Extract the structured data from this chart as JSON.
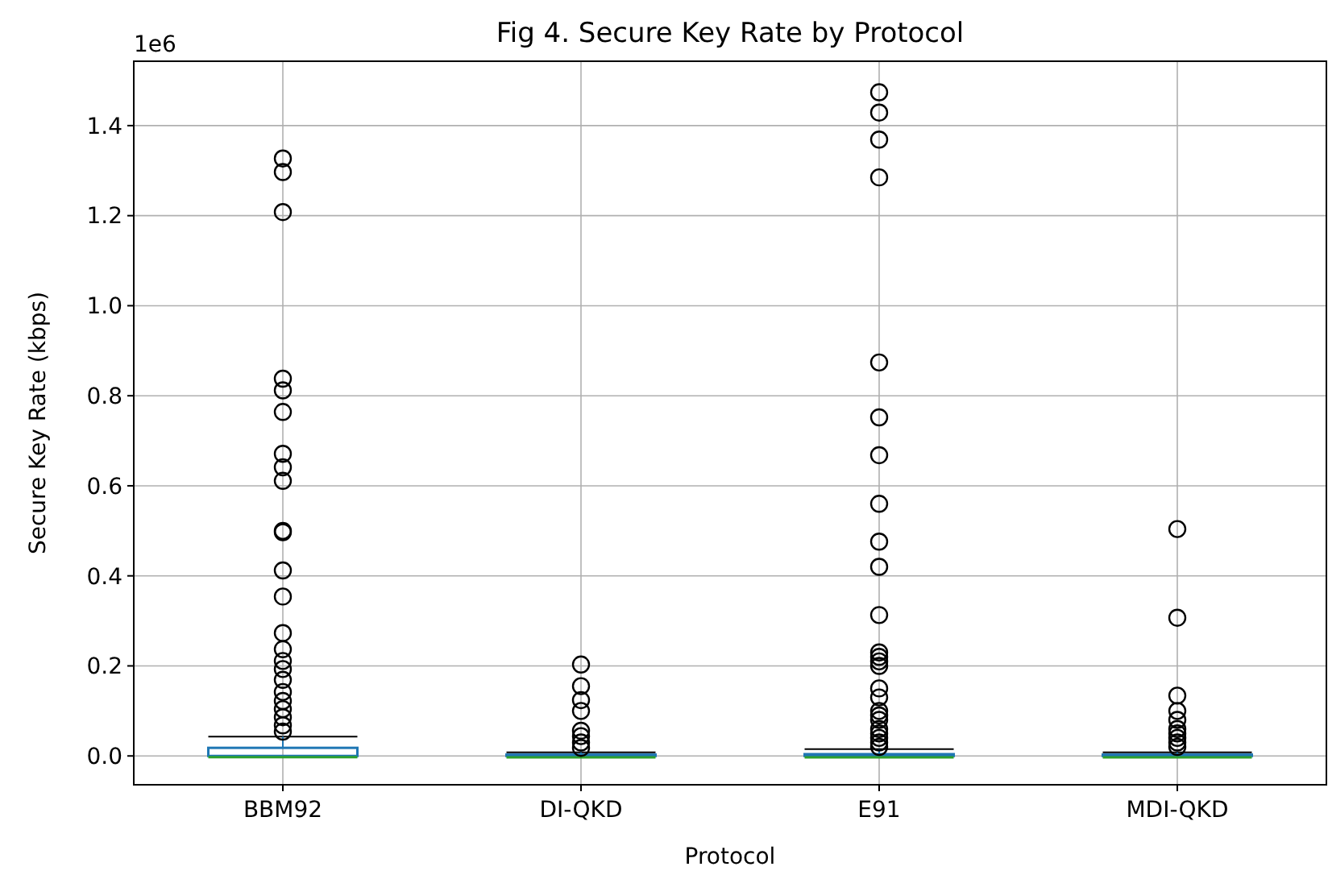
{
  "chart_data": {
    "type": "box",
    "title": "Fig 4. Secure Key Rate by Protocol",
    "xlabel": "Protocol",
    "ylabel": "Secure Key Rate (kbps)",
    "annotations": [
      "1e6"
    ],
    "categories": [
      "BBM92",
      "DI-QKD",
      "E91",
      "MDI-QKD"
    ],
    "ylim": [
      -0.064,
      1.543
    ],
    "yticks": [
      {
        "value": 0,
        "label": "0.0"
      },
      {
        "value": 0.2,
        "label": "0.2"
      },
      {
        "value": 0.4,
        "label": "0.4"
      },
      {
        "value": 0.6,
        "label": "0.6"
      },
      {
        "value": 0.8,
        "label": "0.8"
      },
      {
        "value": 1.0,
        "label": "1.0"
      },
      {
        "value": 1.2,
        "label": "1.2"
      },
      {
        "value": 1.4,
        "label": "1.4"
      }
    ],
    "grid": true,
    "marker": "circle",
    "series": [
      {
        "color": "#1f77b4",
        "boxes": [
          {
            "low": 0,
            "q1": 0,
            "median": 0.001,
            "q3": 0.018,
            "high": 0.043,
            "outliers": [
              1.327,
              1.297,
              1.208,
              0.838,
              0.812,
              0.764,
              0.671,
              0.641,
              0.611,
              0.5,
              0.497,
              0.412,
              0.354,
              0.273,
              0.237,
              0.211,
              0.193,
              0.169,
              0.142,
              0.122,
              0.104,
              0.086,
              0.068,
              0.054
            ]
          },
          {
            "low": 0,
            "q1": 0,
            "median": 0.0005,
            "q3": 0.003,
            "high": 0.008,
            "outliers": [
              0.203,
              0.155,
              0.124,
              0.1,
              0.056,
              0.044,
              0.03,
              0.018
            ]
          },
          {
            "low": 0,
            "q1": 0,
            "median": 0.0005,
            "q3": 0.004,
            "high": 0.015,
            "outliers": [
              1.474,
              1.429,
              1.369,
              1.285,
              0.874,
              0.752,
              0.668,
              0.56,
              0.476,
              0.42,
              0.313,
              0.23,
              0.22,
              0.21,
              0.2,
              0.15,
              0.13,
              0.1,
              0.09,
              0.08,
              0.06,
              0.05,
              0.04,
              0.03,
              0.02
            ]
          },
          {
            "low": 0,
            "q1": 0,
            "median": 0.0005,
            "q3": 0.003,
            "high": 0.008,
            "outliers": [
              0.504,
              0.307,
              0.134,
              0.1,
              0.08,
              0.06,
              0.05,
              0.04,
              0.03,
              0.02
            ]
          }
        ]
      }
    ]
  }
}
